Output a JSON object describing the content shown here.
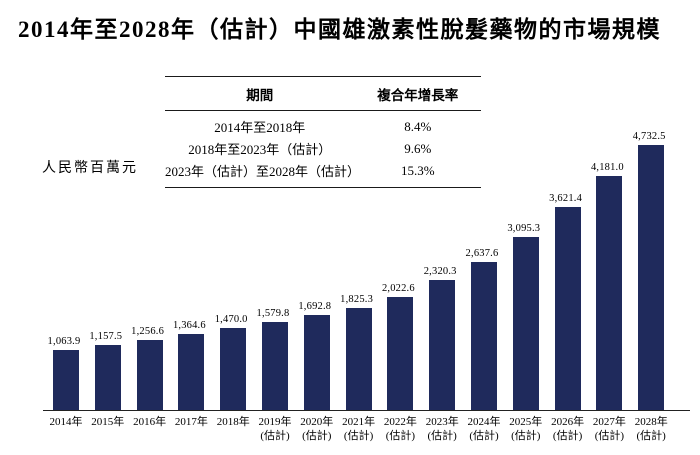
{
  "title": "2014年至2028年（估計）中國雄激素性脫髮藥物的市場規模",
  "y_axis_label": "人民幣百萬元",
  "colors": {
    "bar": "#1f2a5c",
    "axis": "#222222",
    "text": "#000000"
  },
  "cagr_table": {
    "headers": [
      "期間",
      "複合年增長率"
    ],
    "rows": [
      [
        "2014年至2018年",
        "8.4%"
      ],
      [
        "2018年至2023年（估計）",
        "9.6%"
      ],
      [
        "2023年（估計）至2028年（估計）",
        "15.3%"
      ]
    ]
  },
  "chart_data": {
    "type": "bar",
    "title": "2014年至2028年（估計）中國雄激素性脫髮藥物的市場規模",
    "xlabel": "",
    "ylabel": "人民幣百萬元",
    "categories": [
      "2014年",
      "2015年",
      "2016年",
      "2017年",
      "2018年",
      "2019年",
      "2020年",
      "2021年",
      "2022年",
      "2023年",
      "2024年",
      "2025年",
      "2026年",
      "2027年",
      "2028年"
    ],
    "estimate_note": "(估計)",
    "first_estimate_index": 5,
    "values": [
      1063.9,
      1157.5,
      1256.6,
      1364.6,
      1470.0,
      1579.8,
      1692.8,
      1825.3,
      2022.6,
      2320.3,
      2637.6,
      3095.3,
      3621.4,
      4181.0,
      4732.5
    ],
    "value_labels": [
      "1,063.9",
      "1,157.5",
      "1,256.6",
      "1,364.6",
      "1,470.0",
      "1,579.8",
      "1,692.8",
      "1,825.3",
      "2,022.6",
      "2,320.3",
      "2,637.6",
      "3,095.3",
      "3,621.4",
      "4,181.0",
      "4,732.5"
    ],
    "ylim": [
      0,
      4732.5
    ],
    "grid": false,
    "legend": false,
    "bar_color": "#1f2a5c"
  }
}
